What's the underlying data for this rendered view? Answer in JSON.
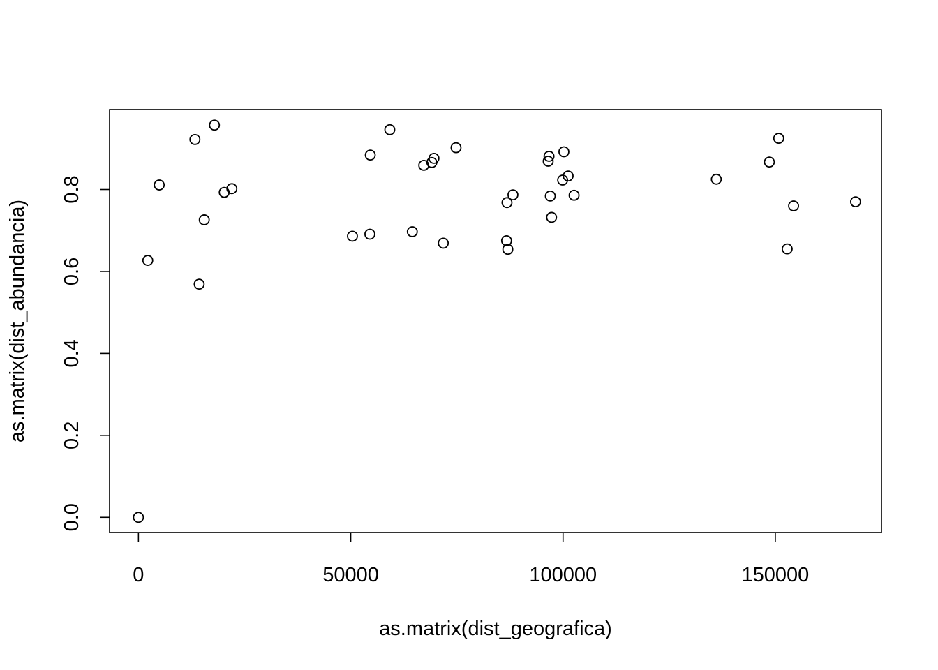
{
  "chart_data": {
    "type": "scatter",
    "title": "",
    "xlabel": "as.matrix(dist_geografica)",
    "ylabel": "as.matrix(dist_abundancia)",
    "xlim": [
      -6800,
      175000
    ],
    "ylim": [
      -0.037,
      0.995
    ],
    "x_ticks": [
      0,
      50000,
      100000,
      150000
    ],
    "x_tick_labels": [
      "0",
      "50000",
      "100000",
      "150000"
    ],
    "y_ticks": [
      0.0,
      0.2,
      0.4,
      0.6,
      0.8
    ],
    "y_tick_labels": [
      "0.0",
      "0.2",
      "0.4",
      "0.6",
      "0.8"
    ],
    "grid": false,
    "points": [
      {
        "x": 0,
        "y": 0.0
      },
      {
        "x": 2200,
        "y": 0.627
      },
      {
        "x": 4900,
        "y": 0.811
      },
      {
        "x": 13300,
        "y": 0.922
      },
      {
        "x": 14300,
        "y": 0.569
      },
      {
        "x": 15500,
        "y": 0.726
      },
      {
        "x": 17900,
        "y": 0.957
      },
      {
        "x": 20200,
        "y": 0.793
      },
      {
        "x": 22000,
        "y": 0.802
      },
      {
        "x": 50400,
        "y": 0.686
      },
      {
        "x": 54500,
        "y": 0.691
      },
      {
        "x": 54600,
        "y": 0.884
      },
      {
        "x": 59200,
        "y": 0.946
      },
      {
        "x": 64500,
        "y": 0.697
      },
      {
        "x": 67200,
        "y": 0.859
      },
      {
        "x": 69100,
        "y": 0.866
      },
      {
        "x": 69600,
        "y": 0.876
      },
      {
        "x": 71800,
        "y": 0.669
      },
      {
        "x": 74800,
        "y": 0.902
      },
      {
        "x": 86700,
        "y": 0.675
      },
      {
        "x": 86800,
        "y": 0.768
      },
      {
        "x": 87000,
        "y": 0.654
      },
      {
        "x": 88200,
        "y": 0.787
      },
      {
        "x": 96500,
        "y": 0.869
      },
      {
        "x": 96700,
        "y": 0.881
      },
      {
        "x": 97000,
        "y": 0.784
      },
      {
        "x": 97300,
        "y": 0.732
      },
      {
        "x": 99900,
        "y": 0.823
      },
      {
        "x": 100200,
        "y": 0.892
      },
      {
        "x": 101200,
        "y": 0.833
      },
      {
        "x": 102600,
        "y": 0.786
      },
      {
        "x": 136100,
        "y": 0.825
      },
      {
        "x": 148600,
        "y": 0.867
      },
      {
        "x": 150800,
        "y": 0.925
      },
      {
        "x": 152800,
        "y": 0.655
      },
      {
        "x": 154300,
        "y": 0.76
      },
      {
        "x": 168900,
        "y": 0.77
      }
    ]
  }
}
